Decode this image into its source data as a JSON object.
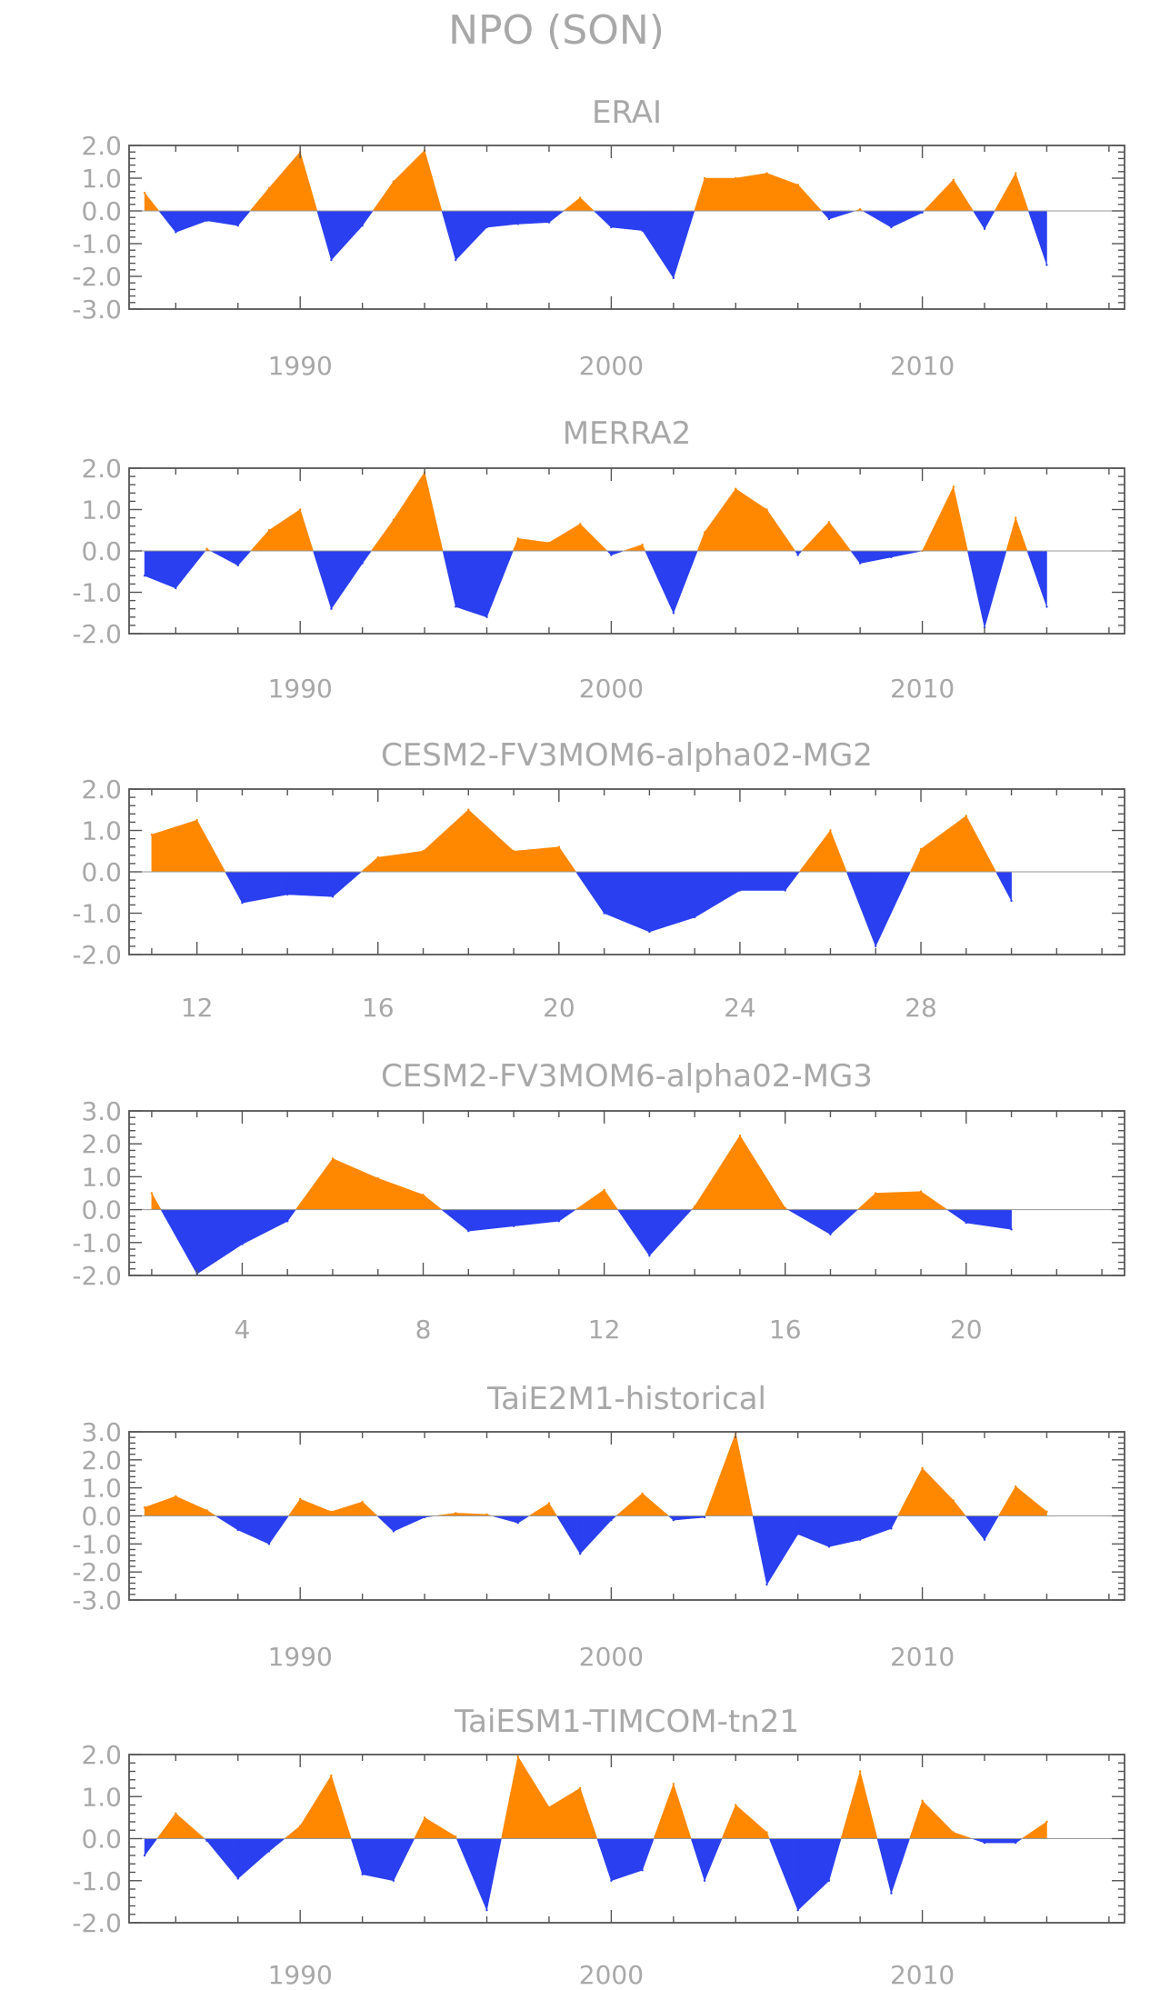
{
  "figure_title": "NPO (SON)",
  "colors": {
    "positive": "#ff8800",
    "negative": "#2a3ff0",
    "axis": "#555555",
    "text": "#a8a8a8"
  },
  "chart_data": [
    {
      "type": "area",
      "title": "ERAI",
      "ylim": [
        -3,
        2
      ],
      "yticks": [
        "2.0",
        "1.0",
        "0.0",
        "-1.0",
        "-2.0",
        "-3.0"
      ],
      "xlim": [
        1984.5,
        2016.5
      ],
      "xticks": [
        1990,
        2000,
        2010
      ],
      "x": [
        1985,
        1986,
        1987,
        1988,
        1989,
        1990,
        1991,
        1992,
        1993,
        1994,
        1995,
        1996,
        1997,
        1998,
        1999,
        2000,
        2001,
        2002,
        2003,
        2004,
        2005,
        2006,
        2007,
        2008,
        2009,
        2010,
        2011,
        2012,
        2013,
        2014
      ],
      "values": [
        0.55,
        -0.65,
        -0.3,
        -0.45,
        0.7,
        1.8,
        -1.5,
        -0.45,
        0.9,
        1.85,
        -1.5,
        -0.5,
        -0.4,
        -0.35,
        0.4,
        -0.5,
        -0.6,
        -2.05,
        1.0,
        1.0,
        1.15,
        0.8,
        -0.25,
        0.05,
        -0.5,
        -0.05,
        0.95,
        -0.55,
        1.15,
        -1.65
      ]
    },
    {
      "type": "area",
      "title": "MERRA2",
      "ylim": [
        -2,
        2
      ],
      "yticks": [
        "2.0",
        "1.0",
        "0.0",
        "-1.0",
        "-2.0"
      ],
      "xlim": [
        1984.5,
        2016.5
      ],
      "xticks": [
        1990,
        2000,
        2010
      ],
      "x": [
        1985,
        1986,
        1987,
        1988,
        1989,
        1990,
        1991,
        1992,
        1993,
        1994,
        1995,
        1996,
        1997,
        1998,
        1999,
        2000,
        2001,
        2002,
        2003,
        2004,
        2005,
        2006,
        2007,
        2008,
        2009,
        2010,
        2011,
        2012,
        2013,
        2014
      ],
      "values": [
        -0.6,
        -0.9,
        0.05,
        -0.35,
        0.5,
        1.0,
        -1.4,
        -0.3,
        0.75,
        1.9,
        -1.35,
        -1.6,
        0.3,
        0.2,
        0.65,
        -0.1,
        0.15,
        -1.5,
        0.45,
        1.5,
        1.0,
        -0.1,
        0.7,
        -0.3,
        -0.15,
        0.0,
        1.55,
        -1.85,
        0.8,
        -1.35
      ]
    },
    {
      "type": "area",
      "title": "CESM2-FV3MOM6-alpha02-MG2",
      "ylim": [
        -2,
        2
      ],
      "yticks": [
        "2.0",
        "1.0",
        "0.0",
        "-1.0",
        "-2.0"
      ],
      "xlim": [
        10.5,
        32.5
      ],
      "xticks": [
        12,
        16,
        20,
        24,
        28
      ],
      "x": [
        11,
        12,
        13,
        14,
        15,
        16,
        17,
        18,
        19,
        20,
        21,
        22,
        23,
        24,
        25,
        26,
        27,
        28,
        29,
        30
      ],
      "values": [
        0.9,
        1.25,
        -0.75,
        -0.55,
        -0.6,
        0.35,
        0.5,
        1.5,
        0.5,
        0.6,
        -1.0,
        -1.45,
        -1.1,
        -0.45,
        -0.45,
        1.0,
        -1.8,
        0.55,
        1.35,
        -0.7
      ]
    },
    {
      "type": "area",
      "title": "CESM2-FV3MOM6-alpha02-MG3",
      "ylim": [
        -2,
        3
      ],
      "yticks": [
        "3.0",
        "2.0",
        "1.0",
        "0.0",
        "-1.0",
        "-2.0"
      ],
      "xlim": [
        1.5,
        23.5
      ],
      "xticks": [
        4,
        8,
        12,
        16,
        20
      ],
      "x": [
        2,
        3,
        4,
        5,
        6,
        7,
        8,
        9,
        10,
        11,
        12,
        13,
        14,
        15,
        16,
        17,
        18,
        19,
        20,
        21
      ],
      "values": [
        0.5,
        -1.95,
        -1.05,
        -0.35,
        1.55,
        0.95,
        0.45,
        -0.65,
        -0.5,
        -0.35,
        0.6,
        -1.4,
        0.1,
        2.25,
        0.05,
        -0.75,
        0.5,
        0.55,
        -0.4,
        -0.6
      ]
    },
    {
      "type": "area",
      "title": "TaiE2M1-historical",
      "ylim": [
        -3,
        3
      ],
      "yticks": [
        "3.0",
        "2.0",
        "1.0",
        "0.0",
        "-1.0",
        "-2.0",
        "-3.0"
      ],
      "xlim": [
        1984.5,
        2016.5
      ],
      "xticks": [
        1990,
        2000,
        2010
      ],
      "x": [
        1985,
        1986,
        1987,
        1988,
        1989,
        1990,
        1991,
        1992,
        1993,
        1994,
        1995,
        1996,
        1997,
        1998,
        1999,
        2000,
        2001,
        2002,
        2003,
        2004,
        2005,
        2006,
        2007,
        2008,
        2009,
        2010,
        2011,
        2012,
        2013,
        2014
      ],
      "values": [
        0.3,
        0.7,
        0.2,
        -0.5,
        -1.0,
        0.6,
        0.15,
        0.5,
        -0.55,
        -0.05,
        0.1,
        0.05,
        -0.25,
        0.45,
        -1.35,
        -0.15,
        0.8,
        -0.15,
        -0.05,
        2.95,
        -2.45,
        -0.65,
        -1.1,
        -0.85,
        -0.45,
        1.7,
        0.55,
        -0.85,
        1.05,
        0.15
      ]
    },
    {
      "type": "area",
      "title": "TaiESM1-TIMCOM-tn21",
      "ylim": [
        -2,
        2
      ],
      "yticks": [
        "2.0",
        "1.0",
        "0.0",
        "-1.0",
        "-2.0"
      ],
      "xlim": [
        1984.5,
        2016.5
      ],
      "xticks": [
        1990,
        2000,
        2010
      ],
      "x": [
        1985,
        1986,
        1987,
        1988,
        1989,
        1990,
        1991,
        1992,
        1993,
        1994,
        1995,
        1996,
        1997,
        1998,
        1999,
        2000,
        2001,
        2002,
        2003,
        2004,
        2005,
        2006,
        2007,
        2008,
        2009,
        2010,
        2011,
        2012,
        2013,
        2014
      ],
      "values": [
        -0.4,
        0.6,
        -0.05,
        -0.95,
        -0.3,
        0.3,
        1.5,
        -0.85,
        -1.0,
        0.5,
        0.05,
        -1.7,
        1.95,
        0.75,
        1.2,
        -1.0,
        -0.75,
        1.3,
        -1.0,
        0.8,
        0.15,
        -1.7,
        -1.0,
        1.6,
        -1.3,
        0.9,
        0.15,
        -0.1,
        -0.1,
        0.4
      ]
    }
  ]
}
